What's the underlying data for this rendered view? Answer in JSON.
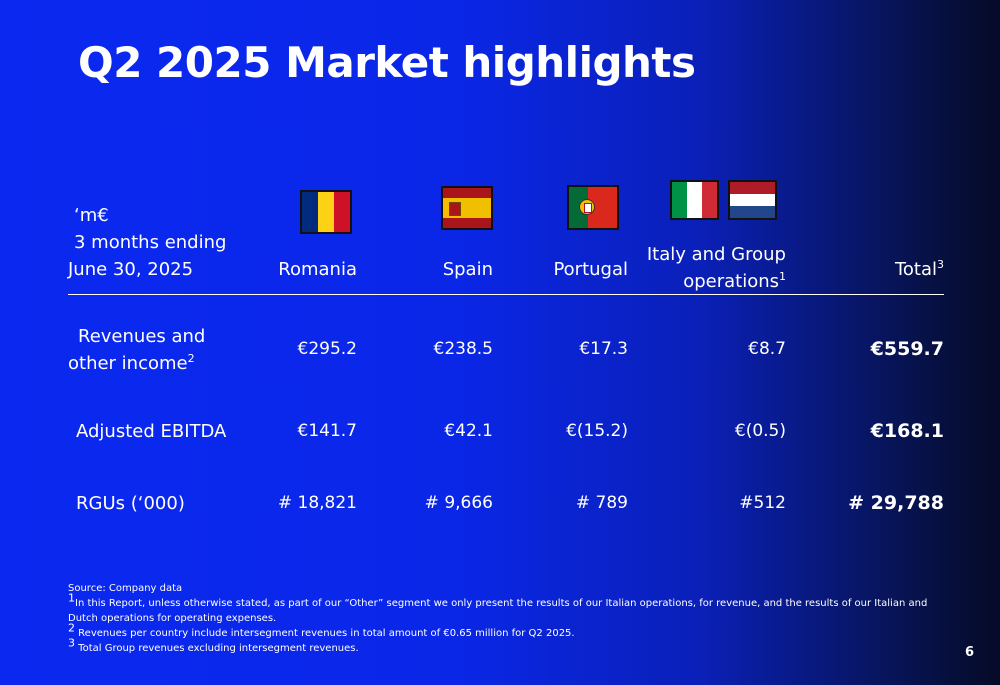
{
  "title": "Q2 2025 Market highlights",
  "header": {
    "unit": "‘m€",
    "period_line1": "3 months ending",
    "period_line2": "June 30, 2025",
    "columns": [
      {
        "label": "Romania"
      },
      {
        "label": "Spain"
      },
      {
        "label": "Portugal"
      },
      {
        "label_line1": "Italy and Group",
        "label_line2": "operations",
        "sup": "1"
      },
      {
        "label": "Total",
        "sup": "3"
      }
    ]
  },
  "flags": {
    "romania": {
      "colors": [
        "#002B7F",
        "#FCD116",
        "#CE1126"
      ]
    },
    "spain": {
      "colors": [
        "#AA151B",
        "#F1BF00",
        "#AA151B"
      ]
    },
    "portugal": {
      "colors": [
        "#046A38",
        "#DA291C"
      ]
    },
    "italy": {
      "colors": [
        "#009246",
        "#FFFFFF",
        "#CE2B37"
      ]
    },
    "netherlands": {
      "colors": [
        "#AE1C28",
        "#FFFFFF",
        "#21468B"
      ]
    }
  },
  "rows": [
    {
      "label_line1": "Revenues and",
      "label_line2": "other income",
      "sup": "2",
      "values": [
        "€295.2",
        "€238.5",
        "€17.3",
        "€8.7",
        "€559.7"
      ]
    },
    {
      "label_line1": "Adjusted EBITDA",
      "values": [
        "€141.7",
        "€42.1",
        "€(15.2)",
        "€(0.5)",
        "€168.1"
      ]
    },
    {
      "label_line1": "RGUs (‘000)",
      "values": [
        "# 18,821",
        "# 9,666",
        "# 789",
        "#512",
        "# 29,788"
      ]
    }
  ],
  "footnotes": {
    "source": "Source: Company data",
    "note1_mark": "1",
    "note1": "In this Report, unless otherwise stated, as part of our “Other” segment we only present the results of our Italian operations, for revenue, and the results of our Italian and Dutch operations  for operating expenses.",
    "note2_mark": "2",
    "note2": " Revenues per country include intersegment revenues in total amount of €0.65 million for Q2 2025.",
    "note3_mark": "3",
    "note3": " Total Group revenues excluding intersegment revenues."
  },
  "page_number": "6"
}
